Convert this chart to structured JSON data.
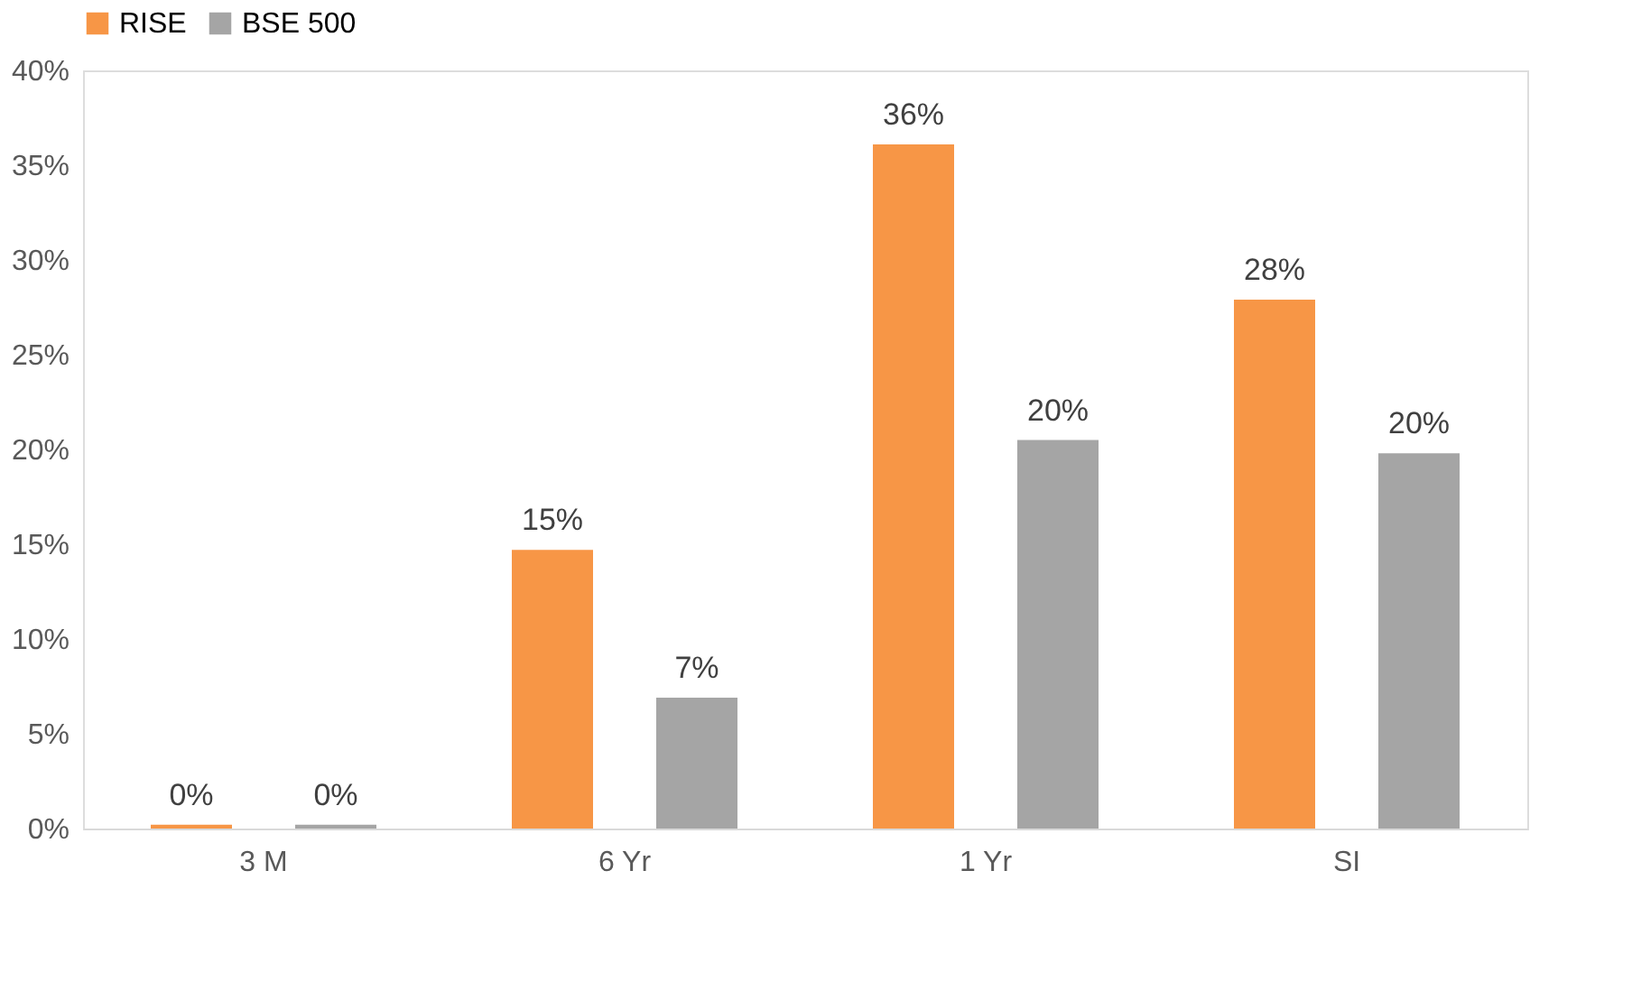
{
  "chart_data": {
    "type": "bar",
    "categories": [
      "3 M",
      "6 Yr",
      "1 Yr",
      "SI"
    ],
    "series": [
      {
        "name": "RISE",
        "color": "#f79646",
        "values": [
          0.2,
          14.7,
          36.1,
          27.9
        ],
        "value_labels": [
          "0%",
          "15%",
          "36%",
          "28%"
        ]
      },
      {
        "name": "BSE 500",
        "color": "#a5a5a5",
        "values": [
          0.2,
          6.9,
          20.5,
          19.8
        ],
        "value_labels": [
          "0%",
          "7%",
          "20%",
          "20%"
        ]
      }
    ],
    "ylim": [
      0,
      40
    ],
    "yticks": [
      {
        "value": 0,
        "label": "0%"
      },
      {
        "value": 5,
        "label": "5%"
      },
      {
        "value": 10,
        "label": "10%"
      },
      {
        "value": 15,
        "label": "15%"
      },
      {
        "value": 20,
        "label": "20%"
      },
      {
        "value": 25,
        "label": "25%"
      },
      {
        "value": 30,
        "label": "30%"
      },
      {
        "value": 35,
        "label": "35%"
      },
      {
        "value": 40,
        "label": "40%"
      }
    ],
    "grid": false,
    "legend": "top"
  }
}
